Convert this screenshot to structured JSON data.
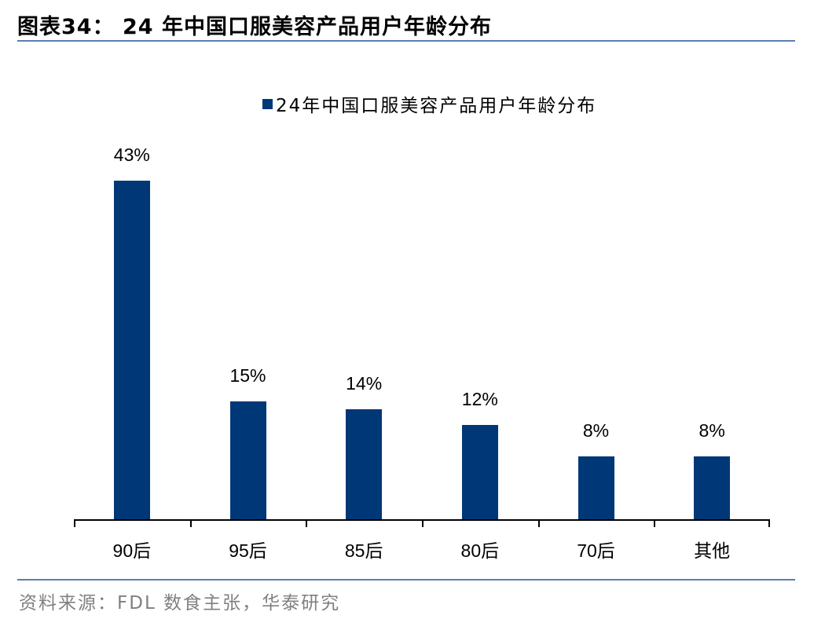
{
  "header": {
    "title": "图表34： 24 年中国口服美容产品用户年龄分布"
  },
  "footer": {
    "source": "资料来源：FDL 数食主张，华泰研究"
  },
  "colors": {
    "bar": "#003777",
    "rule": "#5b7fad"
  },
  "chart_data": {
    "type": "bar",
    "title": "图表34： 24 年中国口服美容产品用户年龄分布",
    "categories": [
      "90后",
      "95后",
      "85后",
      "80后",
      "70后",
      "其他"
    ],
    "series": [
      {
        "name": "24年中国口服美容产品用户年龄分布",
        "values": [
          43,
          15,
          14,
          12,
          8,
          8
        ]
      }
    ],
    "value_labels": [
      "43%",
      "15%",
      "14%",
      "12%",
      "8%",
      "8%"
    ],
    "unit": "%",
    "xlabel": "",
    "ylabel": "",
    "ylim": [
      0,
      45
    ],
    "grid": false,
    "y_axis_visible": false,
    "legend_position": "top-center"
  }
}
